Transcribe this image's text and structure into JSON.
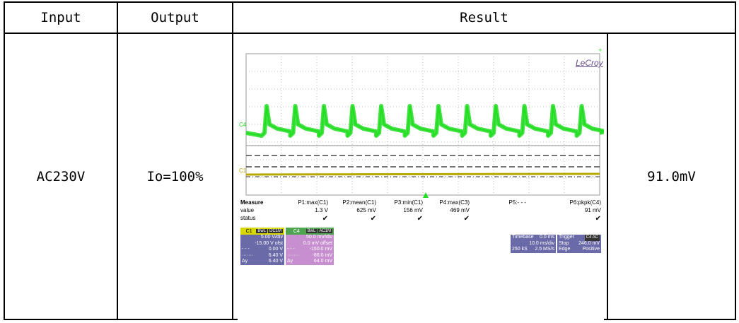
{
  "headers": {
    "input": "Input",
    "output": "Output",
    "result": "Result"
  },
  "row": {
    "input": "AC230V",
    "output": "Io=100%",
    "value": "91.0mV"
  },
  "scope": {
    "brand": "LeCroy",
    "c4_marker": "C4",
    "c1_marker": "C1",
    "measure": {
      "label": "Measure",
      "value_label": "value",
      "status_label": "status",
      "params": [
        {
          "name": "P1:max(C1)",
          "value": "1.3 V"
        },
        {
          "name": "P2:mean(C1)",
          "value": "625 mV"
        },
        {
          "name": "P3:min(C1)",
          "value": "156 mV"
        },
        {
          "name": "P4:max(C3)",
          "value": "469 mV"
        },
        {
          "name": "P5:- - -",
          "value": ""
        },
        {
          "name": "P6:pkpk(C4)",
          "value": "91 mV"
        }
      ],
      "check": "✔"
    },
    "ch1": {
      "name": "C1",
      "tag1": "BwL",
      "tag2": "DC1M",
      "lines": [
        [
          "",
          "5.00 V/div"
        ],
        [
          "",
          "-15.00 V ofst"
        ],
        [
          "- - -",
          "0.00 V"
        ],
        [
          "·······",
          "6.40 V"
        ],
        [
          "Δy",
          "6.40 V"
        ]
      ]
    },
    "ch4": {
      "name": "C4",
      "tag1": "BwL",
      "tag2": "AC1M",
      "lines": [
        [
          "",
          "50.0 mV/div"
        ],
        [
          "",
          "0.0 mV offset"
        ],
        [
          "- - -",
          "-150.0 mV"
        ],
        [
          "·······",
          "-86.0 mV"
        ],
        [
          "Δy",
          "64.0 mV"
        ]
      ]
    },
    "timebase": {
      "title": "Timebase",
      "delay": "0.0 ms",
      "per_div": "10.0 ms/div",
      "samples": "250 kS",
      "rate": "2.5 MS/s"
    },
    "trigger": {
      "title": "Trigger",
      "tag": "C4 AC",
      "mode": "Stop",
      "level": "246.0 mV",
      "type": "Edge",
      "slope": "Positive"
    },
    "colors": {
      "c4_trace": "#22dd22",
      "c1_trace": "#b8a800",
      "grid": "#bbbbbb"
    }
  }
}
